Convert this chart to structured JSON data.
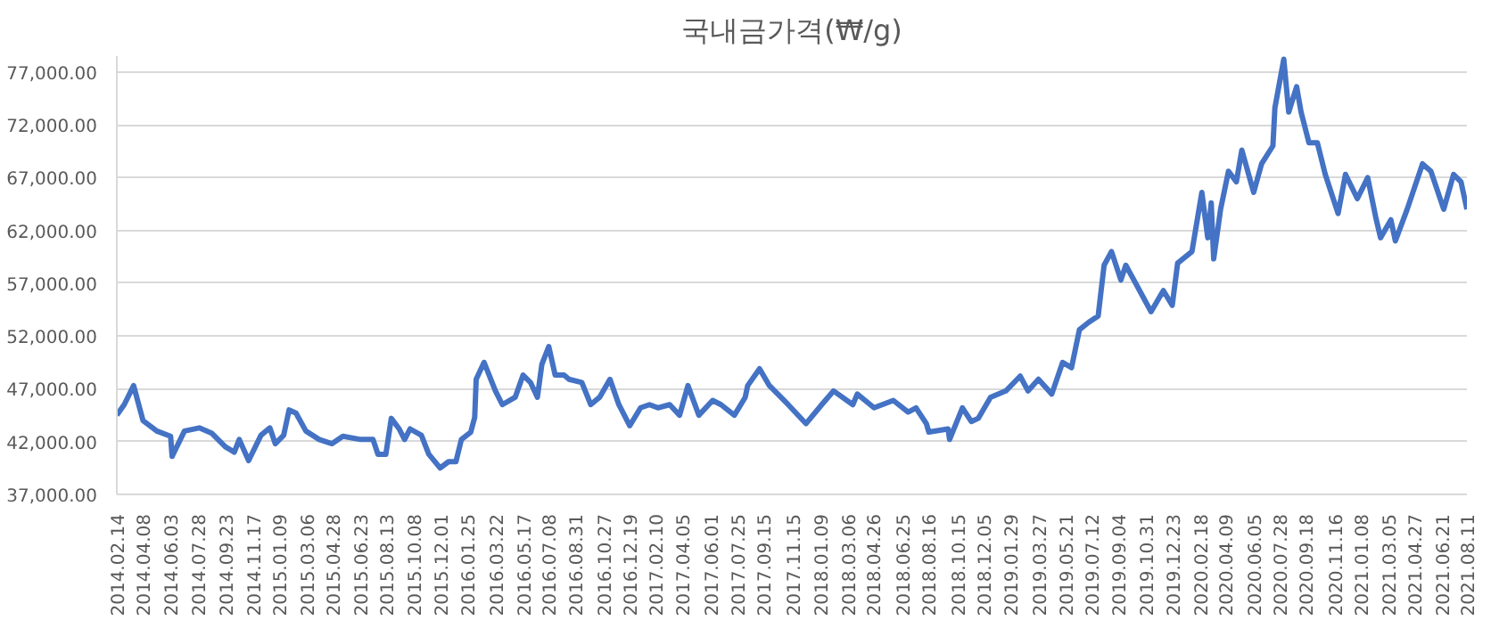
{
  "chart_data": {
    "type": "line",
    "title": "국내금가격(₩/g)",
    "x": [
      "2014-02-14",
      "2014-03-01",
      "2014-03-20",
      "2014-04-08",
      "2014-05-06",
      "2014-06-03",
      "2014-06-06",
      "2014-07-01",
      "2014-07-31",
      "2014-08-25",
      "2014-09-22",
      "2014-10-10",
      "2014-10-20",
      "2014-11-08",
      "2014-12-03",
      "2014-12-21",
      "2015-01-01",
      "2015-01-18",
      "2015-01-29",
      "2015-02-12",
      "2015-03-04",
      "2015-03-31",
      "2015-04-26",
      "2015-05-18",
      "2015-06-23",
      "2015-07-18",
      "2015-07-28",
      "2015-08-13",
      "2015-08-24",
      "2015-09-09",
      "2015-09-20",
      "2015-10-01",
      "2015-10-24",
      "2015-11-08",
      "2015-12-01",
      "2015-12-18",
      "2016-01-02",
      "2016-01-13",
      "2016-02-01",
      "2016-02-09",
      "2016-02-12",
      "2016-02-28",
      "2016-03-22",
      "2016-04-05",
      "2016-05-01",
      "2016-05-17",
      "2016-06-01",
      "2016-06-15",
      "2016-06-24",
      "2016-07-08",
      "2016-07-21",
      "2016-08-08",
      "2016-08-18",
      "2016-09-13",
      "2016-10-01",
      "2016-10-19",
      "2016-11-09",
      "2016-11-27",
      "2016-12-19",
      "2017-01-10",
      "2017-01-28",
      "2017-02-14",
      "2017-03-10",
      "2017-03-30",
      "2017-04-16",
      "2017-05-08",
      "2017-06-05",
      "2017-06-22",
      "2017-07-19",
      "2017-08-10",
      "2017-08-15",
      "2017-09-08",
      "2017-09-28",
      "2017-11-05",
      "2017-12-11",
      "2018-01-12",
      "2018-02-05",
      "2018-03-16",
      "2018-03-25",
      "2018-04-28",
      "2018-06-06",
      "2018-07-06",
      "2018-07-22",
      "2018-08-12",
      "2018-08-17",
      "2018-09-25",
      "2018-09-28",
      "2018-10-24",
      "2018-11-11",
      "2018-11-25",
      "2018-12-20",
      "2019-01-20",
      "2019-02-18",
      "2019-03-06",
      "2019-03-27",
      "2019-04-23",
      "2019-05-15",
      "2019-06-02",
      "2019-06-18",
      "2019-07-07",
      "2019-07-26",
      "2019-08-07",
      "2019-08-22",
      "2019-09-10",
      "2019-09-20",
      "2019-10-18",
      "2019-11-10",
      "2019-12-05",
      "2019-12-23",
      "2020-01-03",
      "2020-02-01",
      "2020-02-21",
      "2020-03-04",
      "2020-03-11",
      "2020-03-16",
      "2020-03-30",
      "2020-04-15",
      "2020-05-01",
      "2020-05-12",
      "2020-06-05",
      "2020-06-21",
      "2020-07-14",
      "2020-07-18",
      "2020-08-05",
      "2020-08-15",
      "2020-08-31",
      "2020-09-09",
      "2020-09-25",
      "2020-10-12",
      "2020-10-28",
      "2020-11-23",
      "2020-12-08",
      "2021-01-01",
      "2021-01-22",
      "2021-02-07",
      "2021-02-17",
      "2021-03-10",
      "2021-03-19",
      "2021-04-12",
      "2021-05-13",
      "2021-05-30",
      "2021-06-25",
      "2021-07-15",
      "2021-07-30",
      "2021-08-11"
    ],
    "series": [
      {
        "color": "#4472c4",
        "values": [
          44500,
          45500,
          47300,
          44000,
          43000,
          42500,
          40600,
          43000,
          43300,
          42800,
          41500,
          41000,
          42200,
          40200,
          42600,
          43300,
          41800,
          42600,
          45000,
          44700,
          43000,
          42200,
          41800,
          42500,
          42200,
          42200,
          40800,
          40800,
          44200,
          43200,
          42200,
          43200,
          42600,
          40800,
          39500,
          40100,
          40100,
          42200,
          42900,
          44300,
          47900,
          49500,
          46800,
          45500,
          46200,
          48300,
          47600,
          46200,
          49300,
          51000,
          48300,
          48300,
          47900,
          47600,
          45500,
          46200,
          47900,
          45500,
          43500,
          45200,
          45500,
          45200,
          45500,
          44500,
          47300,
          44500,
          45900,
          45500,
          44500,
          46200,
          47300,
          48900,
          47300,
          45500,
          43700,
          45500,
          46800,
          45500,
          46500,
          45200,
          45900,
          44800,
          45200,
          43700,
          42900,
          43200,
          42200,
          45200,
          43900,
          44200,
          46200,
          46800,
          48200,
          46800,
          47900,
          46500,
          49500,
          49000,
          52600,
          53300,
          53900,
          58700,
          60000,
          57300,
          58700,
          56300,
          54300,
          56300,
          54900,
          58900,
          60000,
          65600,
          61300,
          64600,
          59300,
          64000,
          67600,
          66600,
          69600,
          65600,
          68300,
          70000,
          73600,
          78200,
          73200,
          75600,
          73200,
          70300,
          70300,
          67300,
          63600,
          67300,
          65000,
          67000,
          63300,
          61300,
          63000,
          61000,
          64000,
          68300,
          67600,
          64000,
          67300,
          66600,
          64000
        ]
      }
    ],
    "xlim": [
      "2014-02-14",
      "2021-08-11"
    ],
    "xticks": [
      {
        "value": "2014-02-14",
        "label": "2014.02.14"
      },
      {
        "value": "2014-04-08",
        "label": "2014.04.08"
      },
      {
        "value": "2014-06-03",
        "label": "2014.06.03"
      },
      {
        "value": "2014-07-28",
        "label": "2014.07.28"
      },
      {
        "value": "2014-09-23",
        "label": "2014.09.23"
      },
      {
        "value": "2014-11-17",
        "label": "2014.11.17"
      },
      {
        "value": "2015-01-09",
        "label": "2015.01.09"
      },
      {
        "value": "2015-03-06",
        "label": "2015.03.06"
      },
      {
        "value": "2015-04-28",
        "label": "2015.04.28"
      },
      {
        "value": "2015-06-23",
        "label": "2015.06.23"
      },
      {
        "value": "2015-08-13",
        "label": "2015.08.13"
      },
      {
        "value": "2015-10-08",
        "label": "2015.10.08"
      },
      {
        "value": "2015-12-01",
        "label": "2015.12.01"
      },
      {
        "value": "2016-01-25",
        "label": "2016.01.25"
      },
      {
        "value": "2016-03-22",
        "label": "2016.03.22"
      },
      {
        "value": "2016-05-17",
        "label": "2016.05.17"
      },
      {
        "value": "2016-07-08",
        "label": "2016.07.08"
      },
      {
        "value": "2016-08-31",
        "label": "2016.08.31"
      },
      {
        "value": "2016-10-27",
        "label": "2016.10.27"
      },
      {
        "value": "2016-12-19",
        "label": "2016.12.19"
      },
      {
        "value": "2017-02-10",
        "label": "2017.02.10"
      },
      {
        "value": "2017-04-05",
        "label": "2017.04.05"
      },
      {
        "value": "2017-06-01",
        "label": "2017.06.01"
      },
      {
        "value": "2017-07-25",
        "label": "2017.07.25"
      },
      {
        "value": "2017-09-15",
        "label": "2017.09.15"
      },
      {
        "value": "2017-11-15",
        "label": "2017.11.15"
      },
      {
        "value": "2018-01-09",
        "label": "2018.01.09"
      },
      {
        "value": "2018-03-06",
        "label": "2018.03.06"
      },
      {
        "value": "2018-04-26",
        "label": "2018.04.26"
      },
      {
        "value": "2018-06-25",
        "label": "2018.06.25"
      },
      {
        "value": "2018-08-16",
        "label": "2018.08.16"
      },
      {
        "value": "2018-10-15",
        "label": "2018.10.15"
      },
      {
        "value": "2018-12-05",
        "label": "2018.12.05"
      },
      {
        "value": "2019-01-29",
        "label": "2019.01.29"
      },
      {
        "value": "2019-03-27",
        "label": "2019.03.27"
      },
      {
        "value": "2019-05-21",
        "label": "2019.05.21"
      },
      {
        "value": "2019-07-12",
        "label": "2019.07.12"
      },
      {
        "value": "2019-09-04",
        "label": "2019.09.04"
      },
      {
        "value": "2019-10-31",
        "label": "2019.10.31"
      },
      {
        "value": "2019-12-23",
        "label": "2019.12.23"
      },
      {
        "value": "2020-02-18",
        "label": "2020.02.18"
      },
      {
        "value": "2020-04-09",
        "label": "2020.04.09"
      },
      {
        "value": "2020-06-05",
        "label": "2020.06.05"
      },
      {
        "value": "2020-07-28",
        "label": "2020.07.28"
      },
      {
        "value": "2020-09-18",
        "label": "2020.09.18"
      },
      {
        "value": "2020-11-16",
        "label": "2020.11.16"
      },
      {
        "value": "2021-01-08",
        "label": "2021.01.08"
      },
      {
        "value": "2021-03-05",
        "label": "2021.03.05"
      },
      {
        "value": "2021-04-27",
        "label": "2021.04.27"
      },
      {
        "value": "2021-06-21",
        "label": "2021.06.21"
      },
      {
        "value": "2021-08-11",
        "label": "2021.08.11"
      }
    ],
    "ylim": [
      37000,
      78500
    ],
    "yticks": [
      {
        "value": 37000,
        "label": "37,000.00"
      },
      {
        "value": 42000,
        "label": "42,000.00"
      },
      {
        "value": 47000,
        "label": "47,000.00"
      },
      {
        "value": 52000,
        "label": "52,000.00"
      },
      {
        "value": 57000,
        "label": "57,000.00"
      },
      {
        "value": 62000,
        "label": "62,000.00"
      },
      {
        "value": 67000,
        "label": "67,000.00"
      },
      {
        "value": 72000,
        "label": "72,000.00"
      },
      {
        "value": 77000,
        "label": "77,000.00"
      }
    ],
    "grid": "y",
    "line_style": "solid"
  }
}
